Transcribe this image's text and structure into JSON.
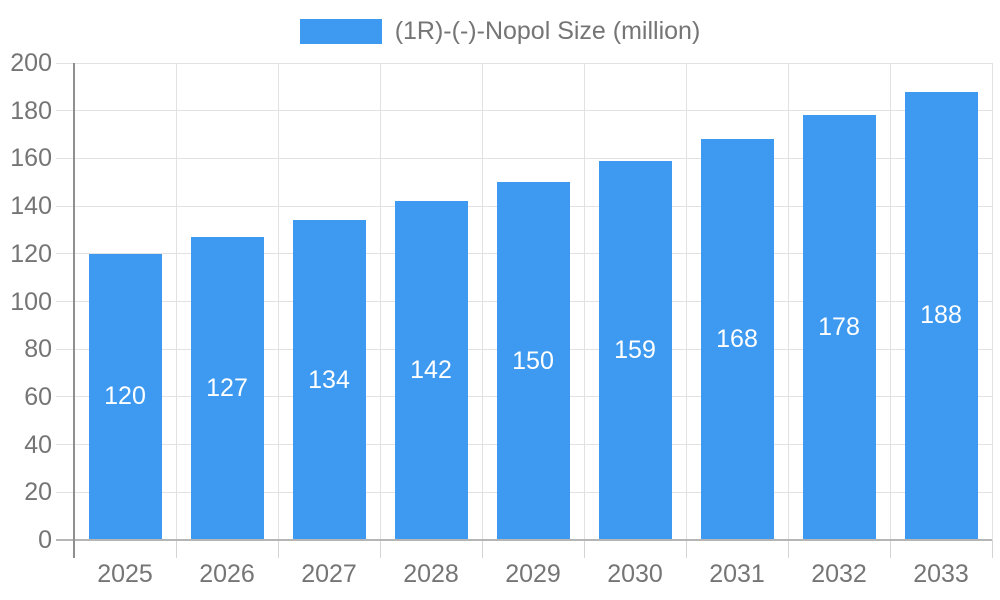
{
  "chart_data": {
    "type": "bar",
    "title": "",
    "legend": {
      "label": "(1R)-(-)-Nopol Size (million)",
      "position": "top"
    },
    "categories": [
      "2025",
      "2026",
      "2027",
      "2028",
      "2029",
      "2030",
      "2031",
      "2032",
      "2033"
    ],
    "series": [
      {
        "name": "(1R)-(-)-Nopol Size (million)",
        "values": [
          120,
          127,
          134,
          142,
          150,
          159,
          168,
          178,
          188
        ]
      }
    ],
    "xlabel": "",
    "ylabel": "",
    "ylim": [
      0,
      200
    ],
    "yticks": [
      0,
      20,
      40,
      60,
      80,
      100,
      120,
      140,
      160,
      180,
      200
    ],
    "grid": true,
    "value_labels_shown": true,
    "colors": {
      "bar": "#3D9AF0",
      "value_label": "#ffffff",
      "axis_text": "#757575",
      "gridline": "#e2e2e2",
      "y_axis_line": "#8f8f8f",
      "x_axis_line": "#b5b5b5",
      "background": "#ffffff"
    }
  }
}
